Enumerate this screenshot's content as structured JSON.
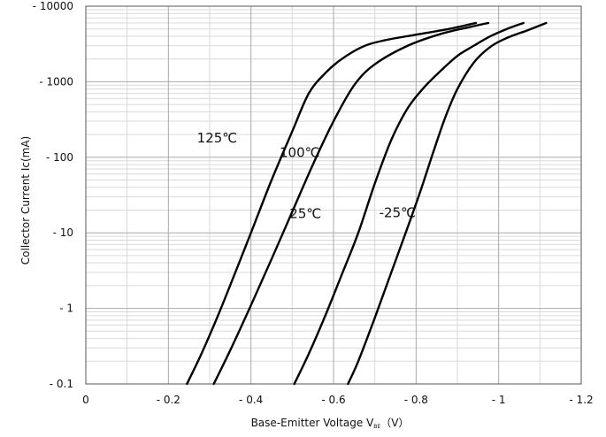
{
  "chart_data": {
    "type": "line",
    "title": "",
    "xlabel": "Base-Emitter Voltage  V",
    "xlabel_sub": "BE",
    "xlabel_unit": "（V）",
    "ylabel": "Collector Current   Ic(mA)",
    "xlim": [
      0,
      1.2
    ],
    "ylim": [
      0.1,
      10000
    ],
    "y_scale": "log",
    "x_tick_values": [
      0,
      0.2,
      0.4,
      0.6,
      0.8,
      1.0,
      1.2
    ],
    "x_tick_labels": [
      "0",
      "- 0.2",
      "- 0.4",
      "- 0.6",
      "- 0.8",
      "- 1",
      "- 1.2"
    ],
    "y_tick_values": [
      0.1,
      1,
      10,
      100,
      1000,
      10000
    ],
    "y_tick_labels": [
      "- 0.1",
      "- 1",
      "- 10",
      "- 100",
      "- 1000",
      "- 10000"
    ],
    "grid": true,
    "series": [
      {
        "name": "125℃",
        "x": [
          0.245,
          0.28,
          0.32,
          0.36,
          0.4,
          0.45,
          0.5,
          0.54,
          0.58,
          0.62,
          0.67,
          0.72,
          0.8,
          0.88,
          0.945
        ],
        "y": [
          0.1,
          0.25,
          0.8,
          2.8,
          10,
          50,
          220,
          700,
          1300,
          2000,
          2900,
          3500,
          4200,
          5000,
          6000
        ]
      },
      {
        "name": "100℃",
        "x": [
          0.31,
          0.35,
          0.4,
          0.45,
          0.5,
          0.55,
          0.6,
          0.65,
          0.7,
          0.78,
          0.86,
          0.93,
          0.975
        ],
        "y": [
          0.1,
          0.28,
          1.1,
          4.5,
          19,
          80,
          300,
          900,
          1700,
          3000,
          4300,
          5300,
          6000
        ]
      },
      {
        "name": "25℃",
        "x": [
          0.505,
          0.54,
          0.58,
          0.62,
          0.66,
          0.7,
          0.74,
          0.78,
          0.82,
          0.86,
          0.9,
          0.94,
          0.98,
          1.02,
          1.06
        ],
        "y": [
          0.1,
          0.25,
          0.8,
          2.8,
          10,
          45,
          170,
          450,
          850,
          1400,
          2200,
          3000,
          4000,
          5000,
          6000
        ]
      },
      {
        "name": "-25℃",
        "x": [
          0.635,
          0.66,
          0.7,
          0.74,
          0.78,
          0.81,
          0.84,
          0.87,
          0.9,
          0.94,
          0.98,
          1.02,
          1.07,
          1.115
        ],
        "y": [
          0.1,
          0.2,
          0.75,
          3,
          12,
          35,
          110,
          330,
          800,
          1800,
          2900,
          3800,
          4800,
          6000
        ]
      }
    ],
    "annotations": [
      {
        "text": "125℃",
        "x": 0.318,
        "y": 180
      },
      {
        "text": "100℃",
        "x": 0.518,
        "y": 115
      },
      {
        "text": "25℃",
        "x": 0.532,
        "y": 18
      },
      {
        "text": "-25℃",
        "x": 0.755,
        "y": 18.5
      }
    ]
  }
}
